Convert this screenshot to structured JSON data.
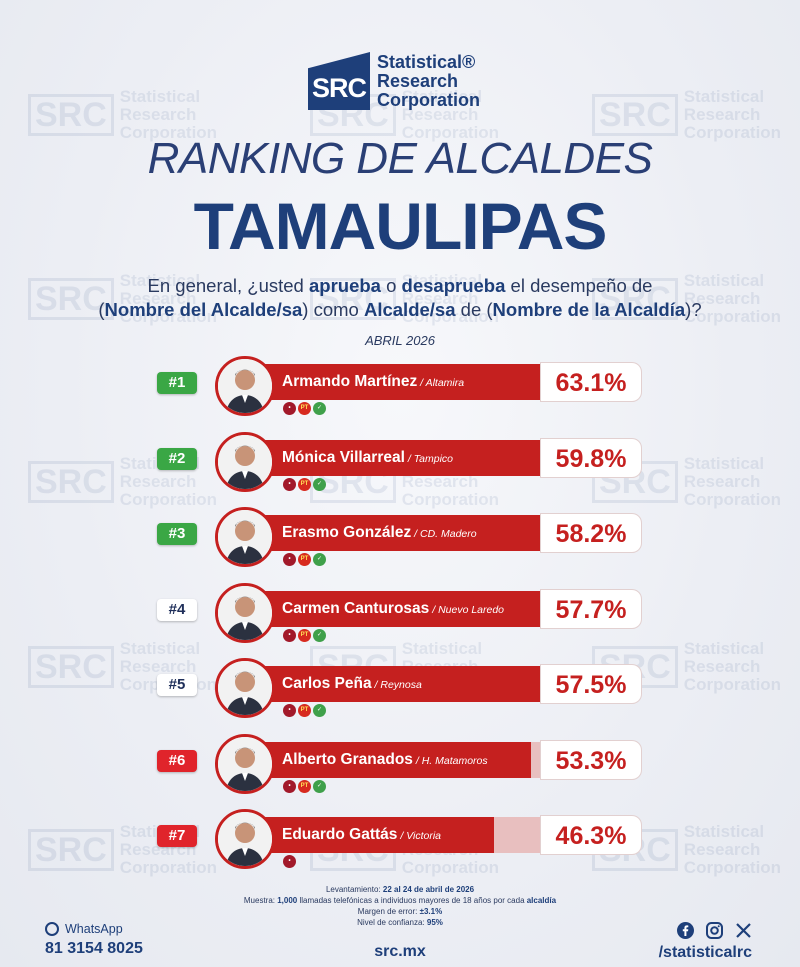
{
  "brand": {
    "logo_mark": "SRC",
    "logo_lines": [
      "Statistical®",
      "Research",
      "Corporation"
    ],
    "primary": "#1e3f7a",
    "accent": "#c5201f"
  },
  "title": "RANKING DE ALCALDES",
  "state": "TAMAULIPAS",
  "question": {
    "p1": "En general, ¿usted ",
    "b1": "aprueba",
    "p2": " o ",
    "b2": "desaprueba",
    "p3": " el desempeño de",
    "p4": "(",
    "b3": "Nombre del Alcalde/sa",
    "p5": ") como ",
    "b4": "Alcalde/sa",
    "p6": " de (",
    "b5": "Nombre de la Alcaldía",
    "p7": ")?"
  },
  "period": "ABRIL 2026",
  "chart_data": {
    "type": "bar",
    "orientation": "horizontal",
    "xlim": [
      0,
      100
    ],
    "items": [
      {
        "rank": "#1",
        "name": "Armando Martínez",
        "city": "Altamira",
        "value": 63.1,
        "label": "63.1%",
        "rank_color": "#3aa745",
        "rank_text": "#ffffff",
        "parties": [
          "morena",
          "PT",
          "verde"
        ]
      },
      {
        "rank": "#2",
        "name": "Mónica Villarreal",
        "city": "Tampico",
        "value": 59.8,
        "label": "59.8%",
        "rank_color": "#3aa745",
        "rank_text": "#ffffff",
        "parties": [
          "morena",
          "PT",
          "verde"
        ]
      },
      {
        "rank": "#3",
        "name": "Erasmo González",
        "city": "CD. Madero",
        "value": 58.2,
        "label": "58.2%",
        "rank_color": "#3aa745",
        "rank_text": "#ffffff",
        "parties": [
          "morena",
          "PT",
          "verde"
        ]
      },
      {
        "rank": "#4",
        "name": "Carmen Canturosas",
        "city": "Nuevo Laredo",
        "value": 57.7,
        "label": "57.7%",
        "rank_color": "#ffffff",
        "rank_text": "#1f2f5a",
        "parties": [
          "morena",
          "PT",
          "verde"
        ]
      },
      {
        "rank": "#5",
        "name": "Carlos Peña",
        "city": "Reynosa",
        "value": 57.5,
        "label": "57.5%",
        "rank_color": "#ffffff",
        "rank_text": "#1f2f5a",
        "parties": [
          "morena",
          "PT",
          "verde"
        ]
      },
      {
        "rank": "#6",
        "name": "Alberto Granados",
        "city": "H. Matamoros",
        "value": 53.3,
        "label": "53.3%",
        "rank_color": "#e0242b",
        "rank_text": "#ffffff",
        "parties": [
          "morena",
          "PT",
          "verde"
        ]
      },
      {
        "rank": "#7",
        "name": "Eduardo Gattás",
        "city": "Victoria",
        "value": 46.3,
        "label": "46.3%",
        "rank_color": "#e0242b",
        "rank_text": "#ffffff",
        "parties": [
          "morena"
        ]
      }
    ]
  },
  "methodology": {
    "l1a": "Levantamiento: ",
    "l1b": "22 al 24 de abril de 2026",
    "l2a": "Muestra: ",
    "l2b": "1,000",
    "l2c": " llamadas telefónicas a individuos mayores de 18 años por cada ",
    "l2d": "alcaldía",
    "l3a": "Margen de error: ",
    "l3b": "±3.1%",
    "l4a": "Nivel de confianza: ",
    "l4b": "95%"
  },
  "contact": {
    "whatsapp_label": "WhatsApp",
    "phone": "81 3154 8025",
    "website": "src.mx",
    "handle": "/statisticalrc"
  }
}
